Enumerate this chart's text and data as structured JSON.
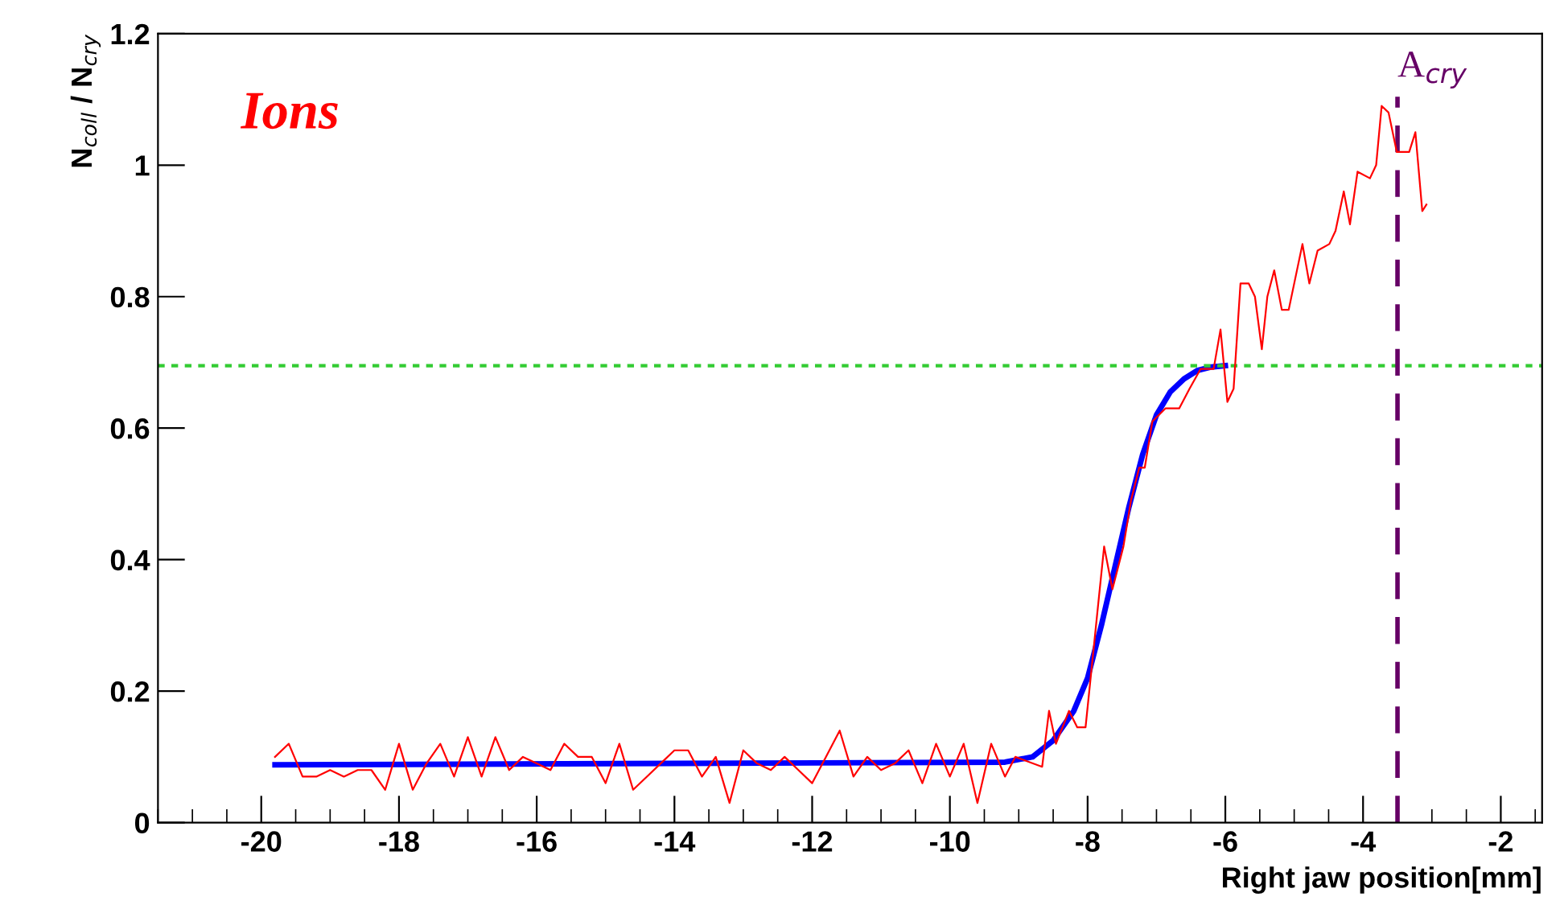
{
  "chart_data": {
    "type": "line",
    "xlabel": "Right jaw position[mm]",
    "ylabel": "N$_{coll}$ / N$_{cry}$",
    "annotations": [
      "Ions"
    ],
    "xlim": [
      -21.5,
      -1.4
    ],
    "xticks": [
      -20,
      -18,
      -16,
      -14,
      -12,
      -10,
      -8,
      -6,
      -4,
      -2
    ],
    "ylim": [
      0,
      1.2
    ],
    "yticks": [
      0,
      0.2,
      0.4,
      0.6,
      0.8,
      1,
      1.2
    ],
    "grid": false,
    "legend": false,
    "marker": "none",
    "ref_lines": [
      {
        "axis": "y",
        "value": 0.695,
        "label": null,
        "color": "#33cc33",
        "line_style": "dotted"
      },
      {
        "axis": "x",
        "value": -3.5,
        "label": "A$_{cry}$",
        "color": "#660066",
        "line_style": "dashed"
      }
    ],
    "series": [
      {
        "color": "#ff0000",
        "line_style": "solid",
        "x": [
          -19.8,
          -19.6,
          -19.4,
          -19.2,
          -19.0,
          -18.8,
          -18.6,
          -18.4,
          -18.2,
          -18.0,
          -17.8,
          -17.6,
          -17.4,
          -17.2,
          -17.0,
          -16.8,
          -16.6,
          -16.4,
          -16.2,
          -16.0,
          -15.8,
          -15.6,
          -15.4,
          -15.2,
          -15.0,
          -14.8,
          -14.6,
          -14.4,
          -14.2,
          -14.0,
          -13.8,
          -13.6,
          -13.4,
          -13.2,
          -13.0,
          -12.8,
          -12.6,
          -12.4,
          -12.2,
          -12.0,
          -11.8,
          -11.6,
          -11.4,
          -11.2,
          -11.0,
          -10.8,
          -10.6,
          -10.4,
          -10.2,
          -10.0,
          -9.8,
          -9.6,
          -9.4,
          -9.2,
          -9.05,
          -8.66,
          -8.56,
          -8.46,
          -8.27,
          -8.15,
          -8.03,
          -7.76,
          -7.64,
          -7.48,
          -7.37,
          -7.25,
          -7.17,
          -7.06,
          -6.87,
          -6.67,
          -6.52,
          -6.36,
          -6.17,
          -6.07,
          -5.97,
          -5.88,
          -5.78,
          -5.66,
          -5.57,
          -5.47,
          -5.39,
          -5.29,
          -5.18,
          -5.08,
          -4.88,
          -4.78,
          -4.66,
          -4.49,
          -4.4,
          -4.28,
          -4.19,
          -4.08,
          -3.9,
          -3.81,
          -3.73,
          -3.63,
          -3.51,
          -3.33,
          -3.24,
          -3.14,
          -3.08
        ],
        "values": [
          0.1,
          0.12,
          0.07,
          0.07,
          0.08,
          0.07,
          0.08,
          0.08,
          0.05,
          0.12,
          0.05,
          0.09,
          0.12,
          0.07,
          0.13,
          0.07,
          0.13,
          0.08,
          0.1,
          0.09,
          0.08,
          0.12,
          0.1,
          0.1,
          0.06,
          0.12,
          0.05,
          0.07,
          0.09,
          0.11,
          0.11,
          0.07,
          0.1,
          0.03,
          0.11,
          0.09,
          0.08,
          0.1,
          0.08,
          0.06,
          0.1,
          0.14,
          0.07,
          0.1,
          0.08,
          0.09,
          0.11,
          0.06,
          0.12,
          0.07,
          0.12,
          0.03,
          0.12,
          0.07,
          0.1,
          0.085,
          0.17,
          0.12,
          0.17,
          0.145,
          0.145,
          0.42,
          0.355,
          0.42,
          0.49,
          0.54,
          0.54,
          0.61,
          0.63,
          0.63,
          0.66,
          0.69,
          0.69,
          0.75,
          0.64,
          0.66,
          0.82,
          0.82,
          0.8,
          0.72,
          0.8,
          0.84,
          0.78,
          0.78,
          0.88,
          0.82,
          0.87,
          0.88,
          0.9,
          0.96,
          0.91,
          0.99,
          0.98,
          1.0,
          1.09,
          1.08,
          1.02,
          1.02,
          1.05,
          0.93,
          0.94
        ]
      },
      {
        "color": "#0000ff",
        "line_style": "solid",
        "x": [
          -19.8,
          -14,
          -9.2,
          -8.8,
          -8.5,
          -8.2,
          -8.0,
          -7.8,
          -7.6,
          -7.4,
          -7.2,
          -7.0,
          -6.8,
          -6.6,
          -6.4,
          -6.2,
          -6.0
        ],
        "values": [
          0.088,
          0.09,
          0.092,
          0.1,
          0.125,
          0.17,
          0.22,
          0.3,
          0.39,
          0.48,
          0.56,
          0.62,
          0.655,
          0.675,
          0.688,
          0.693,
          0.695
        ]
      }
    ]
  }
}
